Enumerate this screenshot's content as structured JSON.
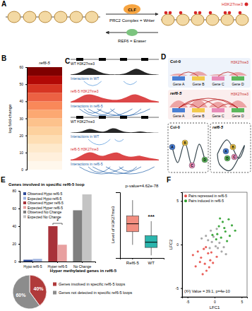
{
  "panel_labels": [
    "A",
    "B",
    "C",
    "D",
    "E",
    "F"
  ],
  "diagram_a": {
    "mark_label": "H3K27me3",
    "writer": "CLF",
    "writer_label": "PRC2 Complex = Writer",
    "eraser_label": "REF6 = Eraser"
  },
  "browser_c": {
    "panels": [
      {
        "tracks": [
          {
            "label": "WT H3K27me3",
            "color": "#000000",
            "profile": [
              0.05,
              0.1,
              0.3,
              0.6,
              0.9,
              0.7,
              0.4,
              0.2,
              0.1,
              0.05,
              0.05,
              0.1,
              0.2,
              0.5,
              0.8,
              0.6,
              0.3,
              0.1,
              0.05,
              0.02
            ]
          },
          {
            "label": "ref6-5 H3K27me3",
            "color": "#d62728",
            "profile": [
              0.1,
              0.3,
              0.6,
              0.9,
              1.0,
              0.9,
              0.7,
              0.5,
              0.4,
              0.3,
              0.3,
              0.4,
              0.6,
              0.9,
              1.0,
              0.8,
              0.6,
              0.3,
              0.2,
              0.1
            ]
          }
        ],
        "interactions": [
          {
            "label": "Interactions in WT",
            "arcs": [
              [
                0.15,
                0.35
              ],
              [
                0.6,
                0.75
              ]
            ]
          },
          {
            "label": "Interactions in ref6-5",
            "arcs": [
              [
                0.1,
                0.5
              ],
              [
                0.2,
                0.7
              ],
              [
                0.3,
                0.9
              ],
              [
                0.45,
                0.8
              ],
              [
                0.15,
                0.35
              ]
            ]
          }
        ]
      },
      {
        "tracks": [
          {
            "label": "WT H3K27me3",
            "color": "#000000",
            "profile": [
              0.02,
              0.05,
              0.1,
              0.3,
              0.5,
              0.4,
              0.2,
              0.1,
              0.3,
              0.6,
              0.5,
              0.2,
              0.1,
              0.05,
              0.1,
              0.2,
              0.1,
              0.05,
              0.02,
              0.01
            ]
          },
          {
            "label": "ref6-5 H3K27me3",
            "color": "#d62728",
            "profile": [
              0.1,
              0.2,
              0.5,
              0.8,
              1.0,
              0.9,
              0.6,
              0.5,
              0.7,
              0.9,
              1.0,
              0.7,
              0.5,
              0.4,
              0.5,
              0.6,
              0.4,
              0.3,
              0.2,
              0.1
            ]
          }
        ],
        "interactions": [
          {
            "label": "Interactions in WT",
            "arcs": [
              [
                0.2,
                0.45
              ],
              [
                0.5,
                0.6
              ]
            ]
          },
          {
            "label": "Interactions in ref6-5",
            "arcs": [
              [
                0.1,
                0.6
              ],
              [
                0.25,
                0.8
              ],
              [
                0.4,
                0.95
              ],
              [
                0.2,
                0.45
              ],
              [
                0.55,
                0.75
              ]
            ]
          }
        ]
      }
    ]
  },
  "diagram_d": {
    "conditions": [
      "Col-0",
      "ref6-5"
    ],
    "genes": [
      "Gene A",
      "Gene B",
      "Gene C",
      "Gene D"
    ],
    "mark_label": "H3K27me3",
    "loop_nodes": [
      "A",
      "B",
      "C",
      "D"
    ]
  },
  "chart_data": [
    {
      "type": "heatmap",
      "title": "ref6-5",
      "y_label": "log fold-change",
      "ylim": [
        0,
        60
      ],
      "yticks": [
        0,
        10,
        20,
        30,
        40,
        50,
        60
      ],
      "bins": [
        0,
        5,
        10,
        15,
        20,
        25,
        30,
        35,
        40,
        45,
        50,
        55,
        60
      ],
      "values": [
        3,
        6,
        9,
        13,
        17,
        21,
        26,
        31,
        37,
        43,
        50,
        57
      ]
    },
    {
      "type": "bar",
      "title": "Genes involved in specific ref6-5 loop",
      "categories": [
        "Hypo ref6-5",
        "Hyper ref6-5",
        "No Change"
      ],
      "ylim": [
        0,
        80
      ],
      "yticks": [
        0,
        20,
        40,
        60,
        80
      ],
      "legend": "upper left",
      "annotations": [
        "*"
      ],
      "series": [
        {
          "name": "Observed Hypo ref6-5",
          "color": "#2f4b9a",
          "values": [
            2,
            null,
            null
          ]
        },
        {
          "name": "Expected Hypo ref6-5",
          "color": "#9fb3e0",
          "values": [
            3,
            null,
            null
          ]
        },
        {
          "name": "Observed Hyper ref6-5",
          "color": "#a8323a",
          "values": [
            null,
            40,
            null
          ]
        },
        {
          "name": "Expected Hyper ref6-5",
          "color": "#e8a0a0",
          "values": [
            null,
            19,
            null
          ]
        },
        {
          "name": "Observed No Change",
          "color": "#7f7f7f",
          "values": [
            null,
            null,
            58
          ]
        },
        {
          "name": "Expected No Change",
          "color": "#c4c4c4",
          "values": [
            null,
            null,
            76
          ]
        }
      ]
    },
    {
      "type": "box",
      "title": "p-value=4.62e-78",
      "y_label": "Level of H3K27me3",
      "categories": [
        "Ref6-5",
        "WT"
      ],
      "colors": [
        "#f28e80",
        "#2bb5ad"
      ],
      "ylim": [
        0,
        5
      ],
      "tick_labels": "x",
      "annotations": [
        "***"
      ],
      "boxes": [
        {
          "min": 1.0,
          "q1": 2.0,
          "median": 2.6,
          "q3": 3.2,
          "max": 4.4
        },
        {
          "min": 0.2,
          "q1": 0.8,
          "median": 1.2,
          "q3": 1.7,
          "max": 2.8
        }
      ]
    },
    {
      "type": "pie",
      "title": "Hyper methylated genes in ref6-5",
      "categories": [
        "Genes involved in specific ref6-5 loops",
        "Genes not detected in specific ref6-5 loops"
      ],
      "values": [
        40,
        60
      ],
      "value_labels": [
        "40%",
        "60%"
      ],
      "colors": [
        "#b03a3a",
        "#8c8c8c"
      ],
      "data_labels": true,
      "legend": "right"
    },
    {
      "type": "scatter",
      "x_label": "LFC1",
      "y_label": "LFC2",
      "xlim": [
        -6,
        6
      ],
      "ylim": [
        -6,
        6
      ],
      "xticks": [
        -5,
        0,
        5
      ],
      "yticks": [
        -5,
        0,
        5
      ],
      "legend": "upper left",
      "annotations": [
        "(X²) Value = 39.1, p=4e-10"
      ],
      "series": [
        {
          "color": "#9e9e9e",
          "x": [
            -0.5,
            0.6,
            -1.2,
            1.3,
            0.2,
            -0.9,
            0.9,
            -0.2,
            1.7,
            -1.6,
            0.4,
            -0.7,
            2.1,
            -2.4
          ],
          "values": [
            0.3,
            -0.4,
            0.5,
            -0.8,
            -0.2,
            -0.4,
            0.2,
            0.9,
            -0.3,
            1.0,
            1.8,
            1.6,
            -1.1,
            0.7
          ]
        },
        {
          "name": "Pairs repressed in ref6-5",
          "color": "#e8504a",
          "x": [
            -2.5,
            -1.8,
            -3.1,
            -1.2,
            -2.0,
            -0.8,
            -3.5,
            -1.5,
            -2.7,
            -0.6,
            -1.0,
            -4.0,
            -2.2,
            -1.6,
            0.4,
            -0.3
          ],
          "values": [
            -1.5,
            -2.2,
            -0.8,
            -1.0,
            -0.5,
            -1.8,
            -2.5,
            -3.0,
            -2.0,
            -0.9,
            -2.6,
            -1.2,
            -3.4,
            -0.3,
            -1.4,
            -2.1
          ]
        },
        {
          "name": "Pairs induced in ref6-5",
          "color": "#2ca02c",
          "x": [
            1.2,
            2.0,
            0.8,
            2.8,
            1.5,
            3.2,
            0.5,
            2.3,
            1.0,
            3.8,
            1.8,
            0.3,
            2.6,
            -0.4
          ],
          "values": [
            0.8,
            1.5,
            2.1,
            1.0,
            2.6,
            2.2,
            1.2,
            0.4,
            3.0,
            1.6,
            1.9,
            0.6,
            2.9,
            1.1
          ]
        }
      ]
    }
  ]
}
